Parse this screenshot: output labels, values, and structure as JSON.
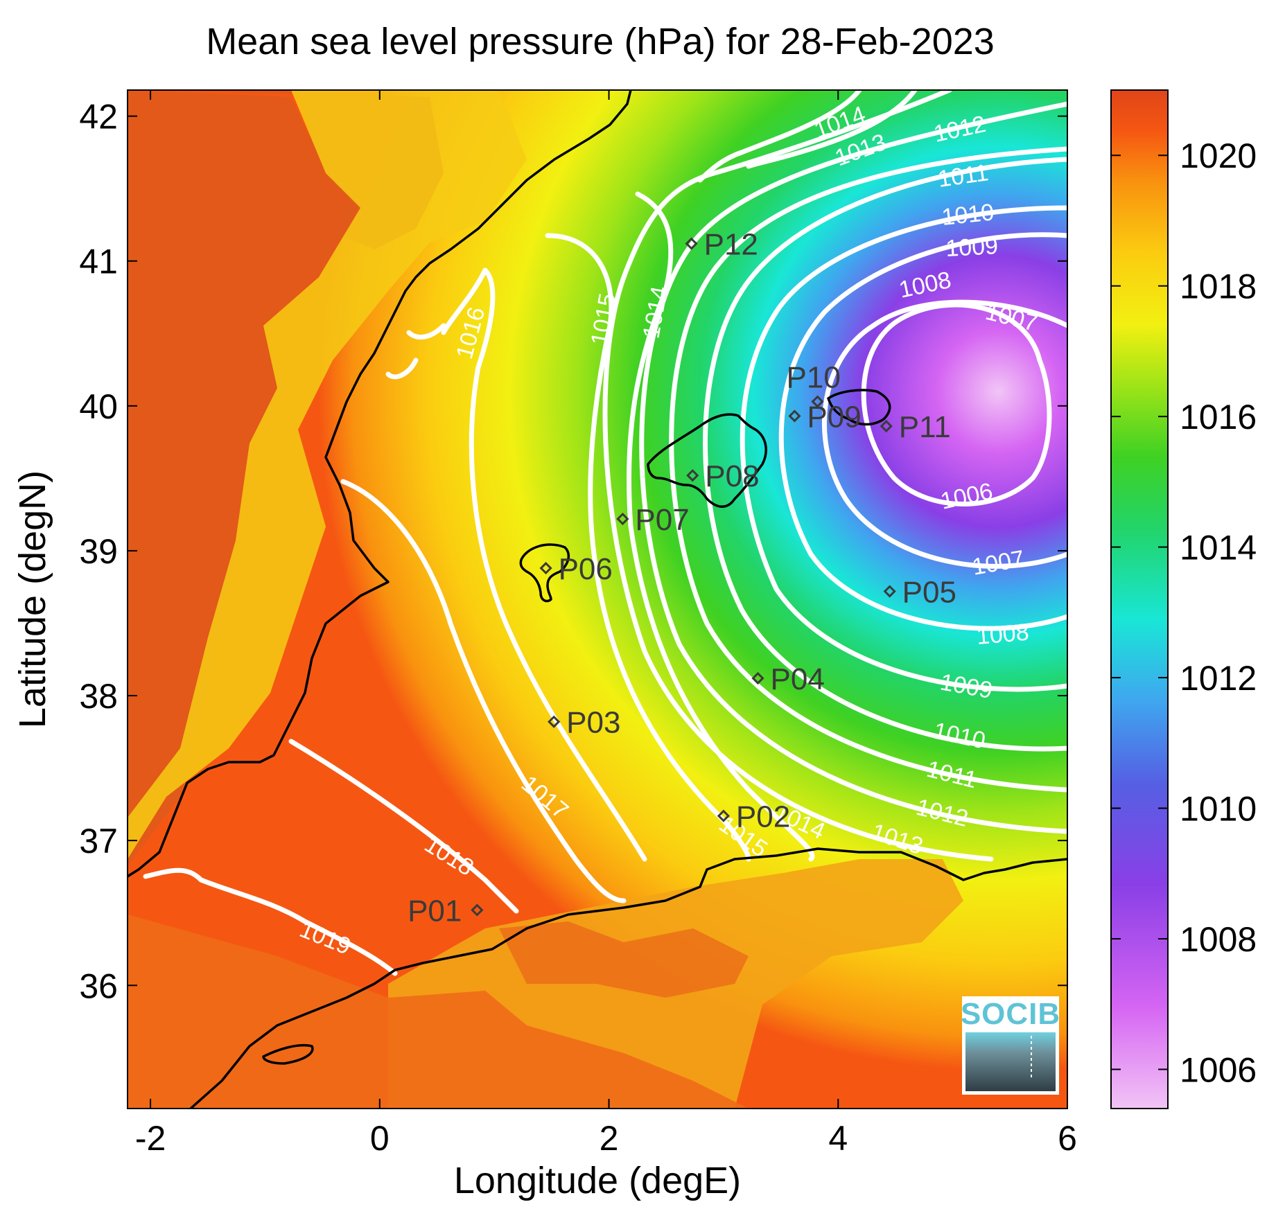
{
  "title": "Mean sea level pressure (hPa) for 28-Feb-2023",
  "x_axis": {
    "label": "Longitude (degE)",
    "range": [
      -2.2,
      6.0
    ],
    "ticks": [
      -2,
      0,
      2,
      4,
      6
    ],
    "tick_labels": [
      "-2",
      "0",
      "2",
      "4",
      "6"
    ]
  },
  "y_axis": {
    "label": "Latitude (degN)",
    "range": [
      35.15,
      42.18
    ],
    "ticks": [
      36,
      37,
      38,
      39,
      40,
      41,
      42
    ],
    "tick_labels": [
      "36",
      "37",
      "38",
      "39",
      "40",
      "41",
      "42"
    ]
  },
  "colorbar": {
    "range": [
      1005.4,
      1021.0
    ],
    "ticks": [
      1006,
      1008,
      1010,
      1012,
      1014,
      1016,
      1018,
      1020
    ],
    "tick_labels": [
      "1006",
      "1008",
      "1010",
      "1012",
      "1014",
      "1016",
      "1018",
      "1020"
    ],
    "colormap": [
      "#f2c4f6",
      "#d565f3",
      "#8a3fe6",
      "#5560e4",
      "#3fa6ef",
      "#19e6d6",
      "#22d468",
      "#3fd123",
      "#9fe418",
      "#f2f011",
      "#fbcc10",
      "#f9920f",
      "#f55712",
      "#e04518"
    ]
  },
  "contour_labels": [
    {
      "text": "1014"
    },
    {
      "text": "1013"
    },
    {
      "text": "1012"
    },
    {
      "text": "1011"
    },
    {
      "text": "1010"
    },
    {
      "text": "1009"
    },
    {
      "text": "1008"
    },
    {
      "text": "1007"
    },
    {
      "text": "1016"
    },
    {
      "text": "1015"
    },
    {
      "text": "1014"
    },
    {
      "text": "1006"
    },
    {
      "text": "1007"
    },
    {
      "text": "1008"
    },
    {
      "text": "1009"
    },
    {
      "text": "1010"
    },
    {
      "text": "1011"
    },
    {
      "text": "1012"
    },
    {
      "text": "1013"
    },
    {
      "text": "1014"
    },
    {
      "text": "1015"
    },
    {
      "text": "1017"
    },
    {
      "text": "1018"
    },
    {
      "text": "1019"
    }
  ],
  "stations": [
    {
      "name": "P01",
      "lon": 0.85,
      "lat": 36.52
    },
    {
      "name": "P02",
      "lon": 3.0,
      "lat": 37.17
    },
    {
      "name": "P03",
      "lon": 1.52,
      "lat": 37.82
    },
    {
      "name": "P04",
      "lon": 3.3,
      "lat": 38.12
    },
    {
      "name": "P05",
      "lon": 4.45,
      "lat": 38.72
    },
    {
      "name": "P06",
      "lon": 1.45,
      "lat": 38.88
    },
    {
      "name": "P07",
      "lon": 2.12,
      "lat": 39.22
    },
    {
      "name": "P08",
      "lon": 2.73,
      "lat": 39.52
    },
    {
      "name": "P09",
      "lon": 3.62,
      "lat": 39.93
    },
    {
      "name": "P10",
      "lon": 3.82,
      "lat": 40.03
    },
    {
      "name": "P11",
      "lon": 4.42,
      "lat": 39.86
    },
    {
      "name": "P12",
      "lon": 2.72,
      "lat": 41.12
    }
  ],
  "logo": {
    "text": "SOCIB"
  },
  "colors": {
    "contour": "#ffffff",
    "coast": "#000000",
    "marker": "#3a3a3a"
  }
}
